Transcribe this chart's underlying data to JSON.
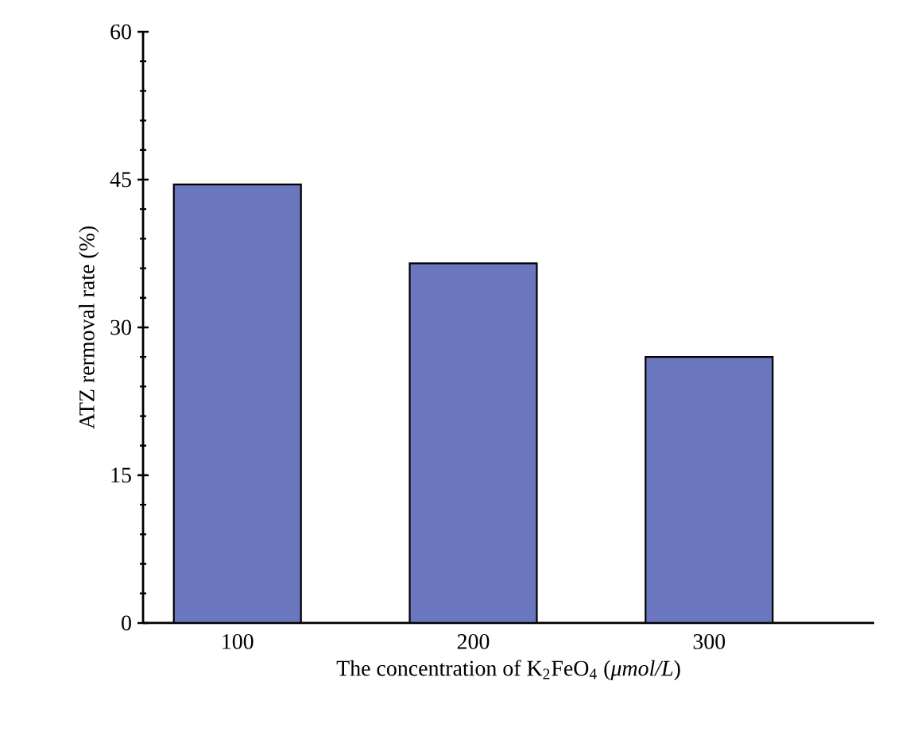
{
  "chart_data": {
    "type": "bar",
    "xlabel": "The concentration of K$_{2}$FeO$_{4}$ (*μmol/L*)",
    "ylabel": "ATZ rermoval rate (%)",
    "categories": [
      "100",
      "200",
      "300"
    ],
    "values": [
      44.5,
      36.5,
      27.0
    ],
    "color": "#6a76bd",
    "ylim": [
      0,
      60
    ],
    "yticks": [
      0,
      15,
      30,
      45,
      60
    ],
    "grid": false
  }
}
